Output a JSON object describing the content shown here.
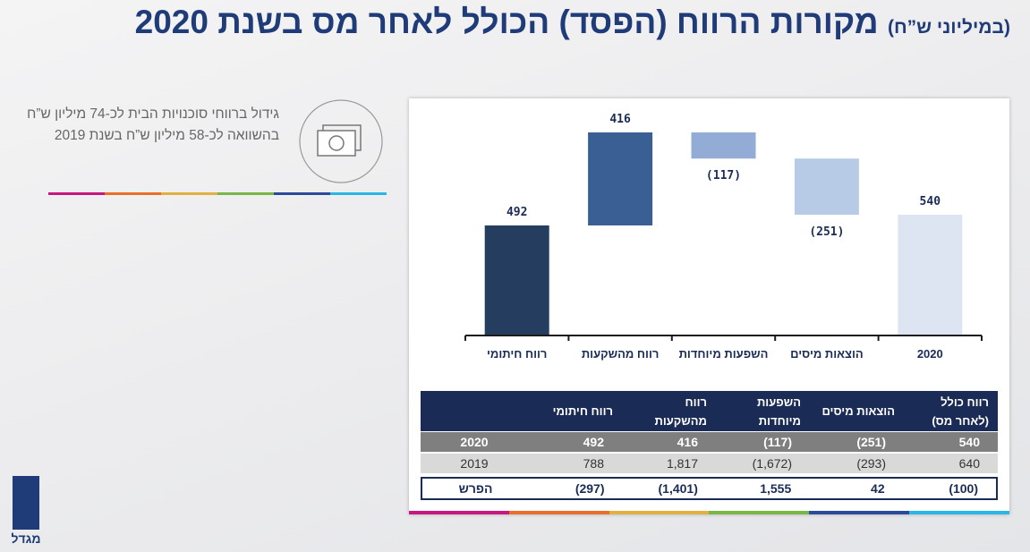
{
  "header": {
    "title": "מקורות הרווח (הפסד) הכולל לאחר מס בשנת 2020",
    "subtitle": "(במיליוני ש”ח)"
  },
  "note": {
    "text": "גידול ברווחי סוכנויות הבית לכ-74 מיליון ש”ח בהשוואה לכ-58 מיליון ש”ח בשנת 2019"
  },
  "logo": {
    "text": "מגדל"
  },
  "chart_data": {
    "type": "waterfall",
    "categories": [
      "רווח חיתומי",
      "רווח מהשקעות",
      "השפעות מיוחדות",
      "הוצאות מיסים",
      "2020"
    ],
    "measures": [
      "absolute",
      "relative",
      "relative",
      "relative",
      "total"
    ],
    "values": [
      492,
      416,
      -117,
      -251,
      540
    ],
    "value_labels": [
      "492",
      "416",
      "(117)",
      "(251)",
      "540"
    ],
    "colors": [
      "#253d5e",
      "#3a5f94",
      "#93acd6",
      "#b8cbe6",
      "#dde5f3"
    ]
  },
  "table": {
    "columns": [
      "רווח חיתומי",
      "רווח מהשקעות",
      "השפעות מיוחדות",
      "הוצאות מיסים",
      "רווח כולל (לאחר מס)"
    ],
    "rows": [
      {
        "label": "2020",
        "cells": [
          "492",
          "416",
          "(117)",
          "(251)",
          "540"
        ]
      },
      {
        "label": "2019",
        "cells": [
          "788",
          "1,817",
          "(1,672)",
          "(293)",
          "640"
        ]
      },
      {
        "label": "הפרש",
        "cells": [
          "(297)",
          "(1,401)",
          "1,555",
          "42",
          "(100)"
        ]
      }
    ]
  }
}
